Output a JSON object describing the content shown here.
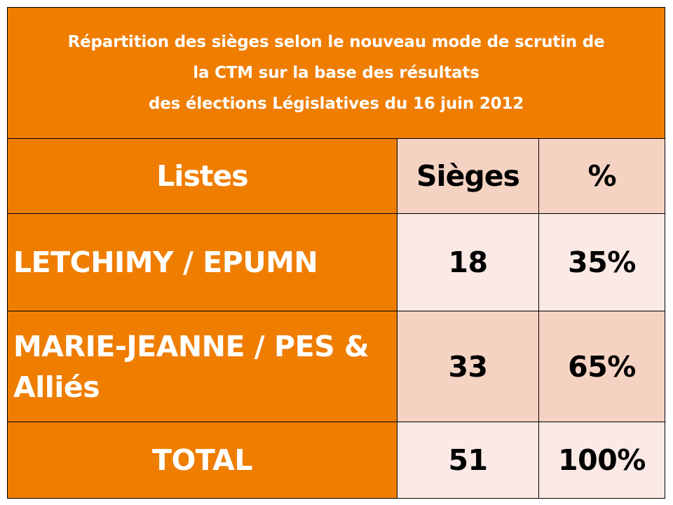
{
  "colors": {
    "orange": "#EF7D00",
    "pink_dark": "#F5D3C2",
    "pink_light": "#FAE9E4",
    "white": "#ffffff",
    "black": "#000000"
  },
  "chart_data": {
    "type": "table",
    "title_lines": [
      "Répartition des sièges selon le nouveau mode de scrutin de",
      "la CTM sur la base des résultats",
      "des élections Législatives du 16 juin 2012"
    ],
    "columns": [
      "Listes",
      "Sièges",
      "%"
    ],
    "rows": [
      {
        "liste": "LETCHIMY  / EPUMN",
        "sieges": "18",
        "pct": "35%"
      },
      {
        "liste": "MARIE-JEANNE /  PES & Alliés",
        "sieges": "33",
        "pct": "65%"
      }
    ],
    "total": {
      "label": "TOTAL",
      "sieges": "51",
      "pct": "100%"
    }
  }
}
